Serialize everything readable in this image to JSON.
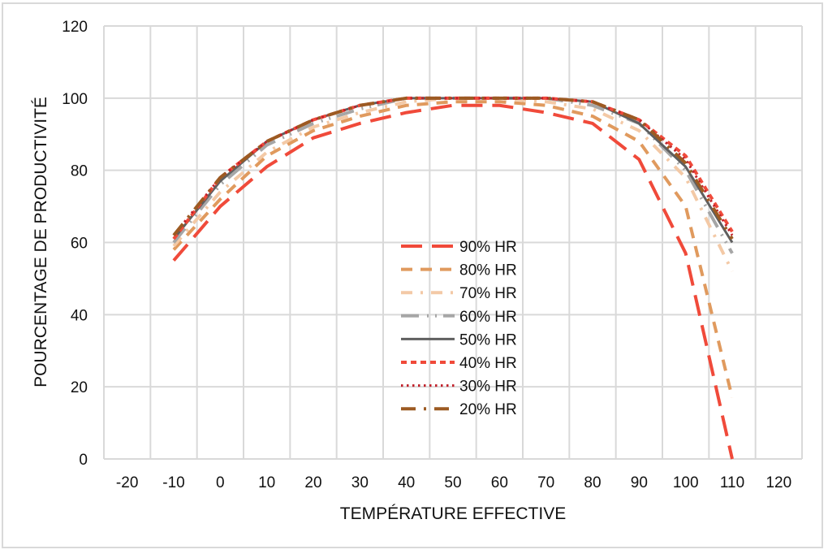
{
  "chart_data": {
    "type": "line",
    "title": "",
    "xlabel": "TEMPÉRATURE EFFECTIVE",
    "ylabel": "POURCENTAGE DE PRODUCTIVITÉ",
    "x_tick_labels": [
      "-20",
      "-10",
      "0",
      "10",
      "20",
      "30",
      "40",
      "50",
      "60",
      "70",
      "80",
      "90",
      "100",
      "110",
      "120"
    ],
    "y_tick_labels": [
      "0",
      "20",
      "40",
      "60",
      "80",
      "100",
      "120"
    ],
    "xlim": [
      -25,
      125
    ],
    "ylim": [
      0,
      120
    ],
    "grid": true,
    "legend_position": "center-right",
    "x": [
      -10,
      0,
      10,
      20,
      30,
      40,
      50,
      60,
      70,
      80,
      90,
      100,
      110
    ],
    "series": [
      {
        "name": "90% HR",
        "color": "#f04a3a",
        "dash": "long-dash",
        "values": [
          55,
          70,
          81,
          89,
          93,
          96,
          98,
          98,
          96,
          93,
          83,
          57,
          0
        ]
      },
      {
        "name": "80% HR",
        "color": "#e09a5e",
        "dash": "dash",
        "values": [
          58,
          72,
          84,
          91,
          95,
          98,
          99,
          99,
          98,
          95,
          88,
          70,
          17
        ]
      },
      {
        "name": "70% HR",
        "color": "#f3c9a6",
        "dash": "dash-dot",
        "values": [
          59,
          74,
          85,
          92,
          96,
          99,
          100,
          100,
          99,
          97,
          91,
          78,
          52
        ]
      },
      {
        "name": "60% HR",
        "color": "#a6a6a6",
        "dash": "long-dash-dot-dot",
        "values": [
          60,
          76,
          87,
          93,
          97,
          100,
          100,
          100,
          100,
          98,
          93,
          80,
          57
        ]
      },
      {
        "name": "50% HR",
        "color": "#5f5f5f",
        "dash": "solid",
        "values": [
          61,
          77,
          88,
          94,
          98,
          100,
          100,
          100,
          100,
          99,
          93,
          81,
          60
        ]
      },
      {
        "name": "40% HR",
        "color": "#f04a3a",
        "dash": "short-dash",
        "values": [
          61,
          78,
          88,
          94,
          98,
          100,
          100,
          100,
          100,
          99,
          94,
          84,
          63
        ]
      },
      {
        "name": "30% HR",
        "color": "#c0202a",
        "dash": "dot",
        "values": [
          62,
          78,
          88,
          94,
          98,
          100,
          100,
          100,
          100,
          99,
          94,
          83,
          62
        ]
      },
      {
        "name": "20% HR",
        "color": "#9c5a22",
        "dash": "long-dash-dot",
        "values": [
          62,
          78,
          88,
          94,
          98,
          100,
          100,
          100,
          100,
          99,
          94,
          82,
          61
        ]
      }
    ]
  }
}
